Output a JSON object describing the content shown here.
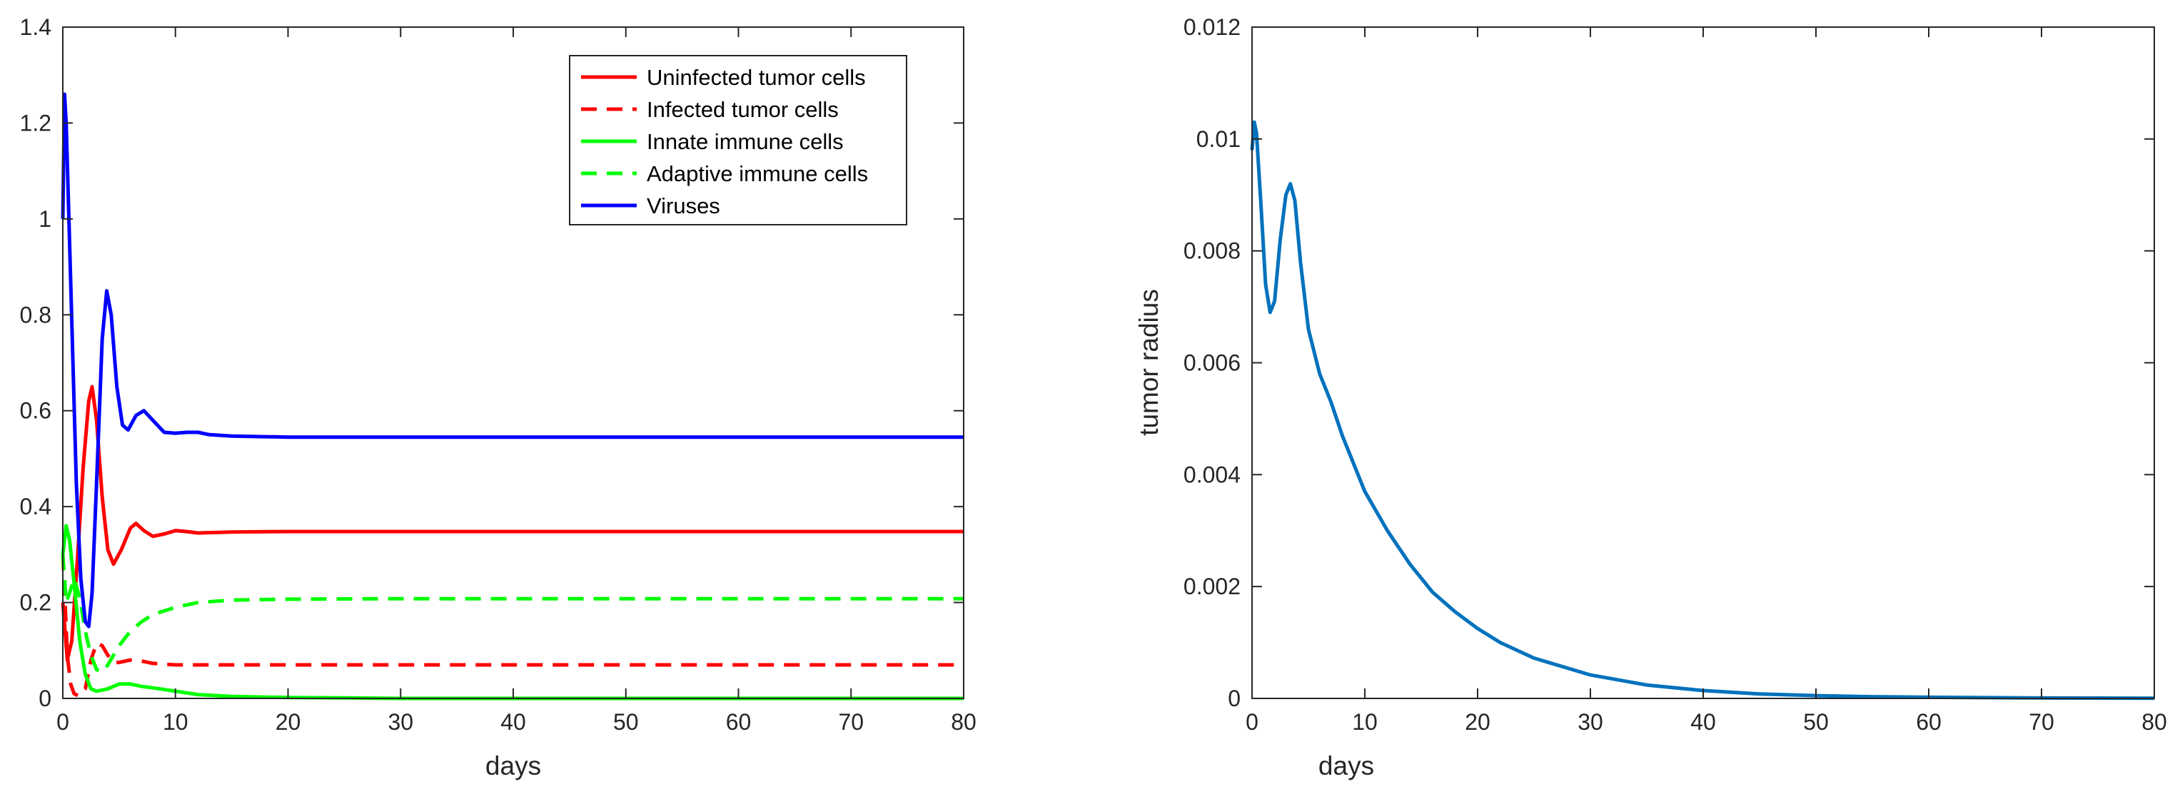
{
  "chart_data": [
    {
      "type": "line",
      "title": "",
      "xlabel": "days",
      "ylabel": "",
      "xlim": [
        0,
        80
      ],
      "ylim": [
        0,
        1.4
      ],
      "xticks": [
        0,
        10,
        20,
        30,
        40,
        50,
        60,
        70,
        80
      ],
      "xtick_labels": [
        "0",
        "10",
        "20",
        "30",
        "40",
        "50",
        "60",
        "70",
        "80"
      ],
      "yticks": [
        0,
        0.2,
        0.4,
        0.6,
        0.8,
        1,
        1.2,
        1.4
      ],
      "ytick_labels": [
        "0",
        "0.2",
        "0.4",
        "0.6",
        "0.8",
        "1",
        "1.2",
        "1.4"
      ],
      "legend_position": "top-right",
      "series": [
        {
          "name": "Uninfected tumor cells",
          "color": "#ff0000",
          "dash": "solid",
          "points": [
            [
              0,
              0.2
            ],
            [
              0.4,
              0.08
            ],
            [
              0.8,
              0.12
            ],
            [
              1.3,
              0.29
            ],
            [
              1.8,
              0.48
            ],
            [
              2.3,
              0.62
            ],
            [
              2.6,
              0.65
            ],
            [
              3,
              0.58
            ],
            [
              3.5,
              0.42
            ],
            [
              4,
              0.31
            ],
            [
              4.5,
              0.28
            ],
            [
              5.2,
              0.31
            ],
            [
              6,
              0.355
            ],
            [
              6.5,
              0.365
            ],
            [
              7.2,
              0.35
            ],
            [
              8,
              0.338
            ],
            [
              9,
              0.343
            ],
            [
              10,
              0.35
            ],
            [
              11,
              0.348
            ],
            [
              12,
              0.345
            ],
            [
              15,
              0.347
            ],
            [
              20,
              0.348
            ],
            [
              30,
              0.348
            ],
            [
              40,
              0.348
            ],
            [
              50,
              0.348
            ],
            [
              60,
              0.348
            ],
            [
              70,
              0.348
            ],
            [
              80,
              0.348
            ]
          ]
        },
        {
          "name": "Infected tumor cells",
          "color": "#ff0000",
          "dash": "dashed",
          "points": [
            [
              0,
              0.3
            ],
            [
              0.2,
              0.2
            ],
            [
              0.4,
              0.09
            ],
            [
              0.7,
              0.03
            ],
            [
              1,
              0.01
            ],
            [
              1.4,
              0.005
            ],
            [
              2,
              0.02
            ],
            [
              2.5,
              0.08
            ],
            [
              3,
              0.115
            ],
            [
              3.5,
              0.11
            ],
            [
              4,
              0.09
            ],
            [
              4.5,
              0.075
            ],
            [
              5,
              0.075
            ],
            [
              6,
              0.08
            ],
            [
              7,
              0.078
            ],
            [
              8,
              0.073
            ],
            [
              10,
              0.07
            ],
            [
              15,
              0.07
            ],
            [
              20,
              0.07
            ],
            [
              40,
              0.07
            ],
            [
              60,
              0.07
            ],
            [
              80,
              0.07
            ]
          ]
        },
        {
          "name": "Innate immune cells",
          "color": "#00ff00",
          "dash": "solid",
          "points": [
            [
              0,
              0.3
            ],
            [
              0.3,
              0.36
            ],
            [
              0.6,
              0.33
            ],
            [
              1,
              0.24
            ],
            [
              1.5,
              0.12
            ],
            [
              2,
              0.05
            ],
            [
              2.5,
              0.02
            ],
            [
              3,
              0.015
            ],
            [
              4,
              0.02
            ],
            [
              5,
              0.03
            ],
            [
              6,
              0.03
            ],
            [
              7,
              0.025
            ],
            [
              8,
              0.022
            ],
            [
              10,
              0.015
            ],
            [
              12,
              0.008
            ],
            [
              15,
              0.004
            ],
            [
              20,
              0.002
            ],
            [
              25,
              0.001
            ],
            [
              30,
              0
            ],
            [
              80,
              0
            ]
          ]
        },
        {
          "name": "Adaptive immune cells",
          "color": "#00ff00",
          "dash": "dashed",
          "points": [
            [
              0,
              0.3
            ],
            [
              0.3,
              0.2
            ],
            [
              0.6,
              0.22
            ],
            [
              1,
              0.25
            ],
            [
              1.5,
              0.21
            ],
            [
              2,
              0.14
            ],
            [
              2.5,
              0.09
            ],
            [
              3,
              0.06
            ],
            [
              3.5,
              0.055
            ],
            [
              4,
              0.07
            ],
            [
              5,
              0.11
            ],
            [
              6,
              0.14
            ],
            [
              7,
              0.16
            ],
            [
              8,
              0.175
            ],
            [
              10,
              0.19
            ],
            [
              12,
              0.2
            ],
            [
              15,
              0.205
            ],
            [
              20,
              0.207
            ],
            [
              30,
              0.208
            ],
            [
              50,
              0.208
            ],
            [
              80,
              0.208
            ]
          ]
        },
        {
          "name": "Viruses",
          "color": "#0000ff",
          "dash": "solid",
          "points": [
            [
              0,
              1.0
            ],
            [
              0.15,
              1.26
            ],
            [
              0.3,
              1.2
            ],
            [
              0.6,
              0.95
            ],
            [
              0.9,
              0.7
            ],
            [
              1.2,
              0.45
            ],
            [
              1.6,
              0.25
            ],
            [
              2,
              0.16
            ],
            [
              2.3,
              0.15
            ],
            [
              2.6,
              0.22
            ],
            [
              3,
              0.45
            ],
            [
              3.5,
              0.75
            ],
            [
              3.9,
              0.85
            ],
            [
              4.3,
              0.8
            ],
            [
              4.8,
              0.65
            ],
            [
              5.3,
              0.57
            ],
            [
              5.8,
              0.56
            ],
            [
              6.5,
              0.59
            ],
            [
              7.2,
              0.6
            ],
            [
              8,
              0.58
            ],
            [
              9,
              0.555
            ],
            [
              10,
              0.553
            ],
            [
              11,
              0.555
            ],
            [
              12,
              0.555
            ],
            [
              13,
              0.55
            ],
            [
              15,
              0.547
            ],
            [
              20,
              0.545
            ],
            [
              30,
              0.545
            ],
            [
              50,
              0.545
            ],
            [
              80,
              0.545
            ]
          ]
        }
      ]
    },
    {
      "type": "line",
      "title": "",
      "xlabel": "days",
      "ylabel": "tumor radius",
      "xlim": [
        0,
        80
      ],
      "ylim": [
        0,
        0.012
      ],
      "xticks": [
        0,
        10,
        20,
        30,
        40,
        50,
        60,
        70,
        80
      ],
      "xtick_labels": [
        "0",
        "10",
        "20",
        "30",
        "40",
        "50",
        "60",
        "70",
        "80"
      ],
      "yticks": [
        0,
        0.002,
        0.004,
        0.006,
        0.008,
        0.01,
        0.012
      ],
      "ytick_labels": [
        "0",
        "0.002",
        "0.004",
        "0.006",
        "0.008",
        "0.01",
        "0.012"
      ],
      "series": [
        {
          "name": "tumor radius",
          "color": "#0072bd",
          "dash": "solid",
          "points": [
            [
              0,
              0.0098
            ],
            [
              0.2,
              0.0103
            ],
            [
              0.4,
              0.0101
            ],
            [
              0.8,
              0.0088
            ],
            [
              1.2,
              0.0074
            ],
            [
              1.6,
              0.0069
            ],
            [
              2,
              0.0071
            ],
            [
              2.5,
              0.0082
            ],
            [
              3,
              0.009
            ],
            [
              3.4,
              0.0092
            ],
            [
              3.8,
              0.0089
            ],
            [
              4.3,
              0.0078
            ],
            [
              5,
              0.0066
            ],
            [
              6,
              0.0058
            ],
            [
              7,
              0.0053
            ],
            [
              8,
              0.0047
            ],
            [
              9,
              0.0042
            ],
            [
              10,
              0.0037
            ],
            [
              12,
              0.003
            ],
            [
              14,
              0.0024
            ],
            [
              16,
              0.0019
            ],
            [
              18,
              0.00155
            ],
            [
              20,
              0.00125
            ],
            [
              22,
              0.001
            ],
            [
              25,
              0.00072
            ],
            [
              30,
              0.00042
            ],
            [
              35,
              0.00024
            ],
            [
              40,
              0.00014
            ],
            [
              45,
              8e-05
            ],
            [
              50,
              5e-05
            ],
            [
              55,
              3e-05
            ],
            [
              60,
              2e-05
            ],
            [
              70,
              8e-06
            ],
            [
              80,
              3e-06
            ]
          ]
        }
      ]
    }
  ]
}
